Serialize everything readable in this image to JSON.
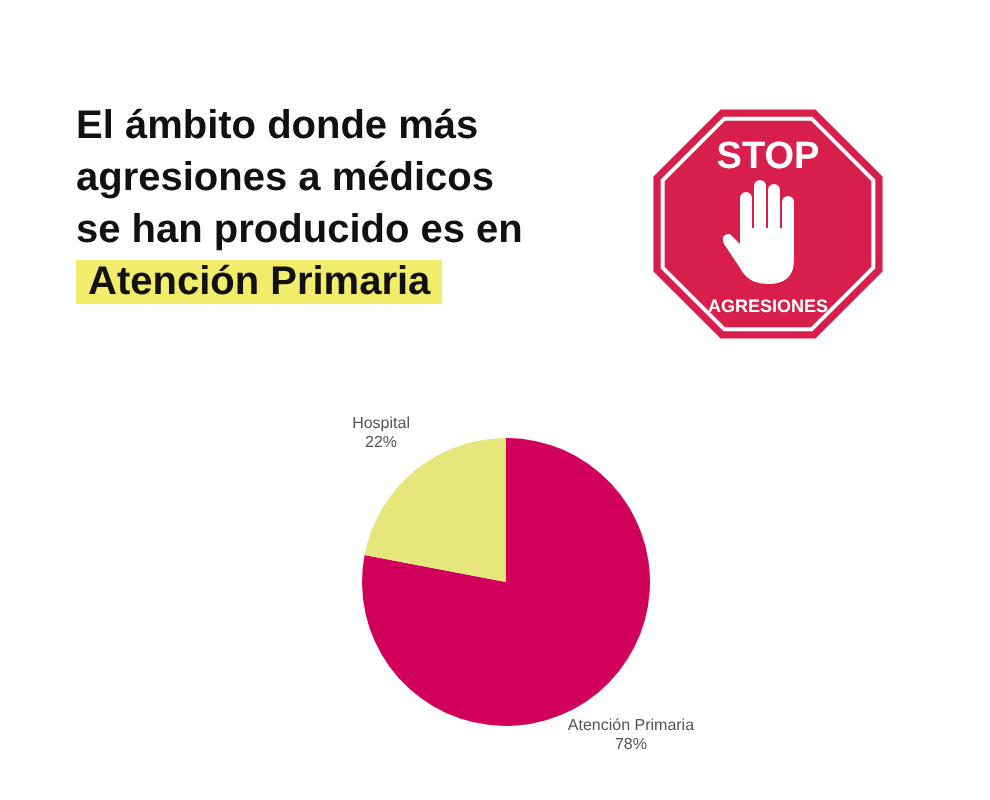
{
  "chart_data": {
    "type": "pie",
    "title": "El ámbito donde más agresiones a médicos se han producido es en",
    "subtitle": "Atención Primaria",
    "annotations": [
      "STOP",
      "AGRESIONES"
    ],
    "categories": [
      "Atención Primaria",
      "Hospital"
    ],
    "values": [
      78,
      22
    ],
    "value_labels": [
      "78%",
      "22%"
    ],
    "colors": [
      "#d1005b",
      "#e6e67a"
    ],
    "legend": false
  }
}
